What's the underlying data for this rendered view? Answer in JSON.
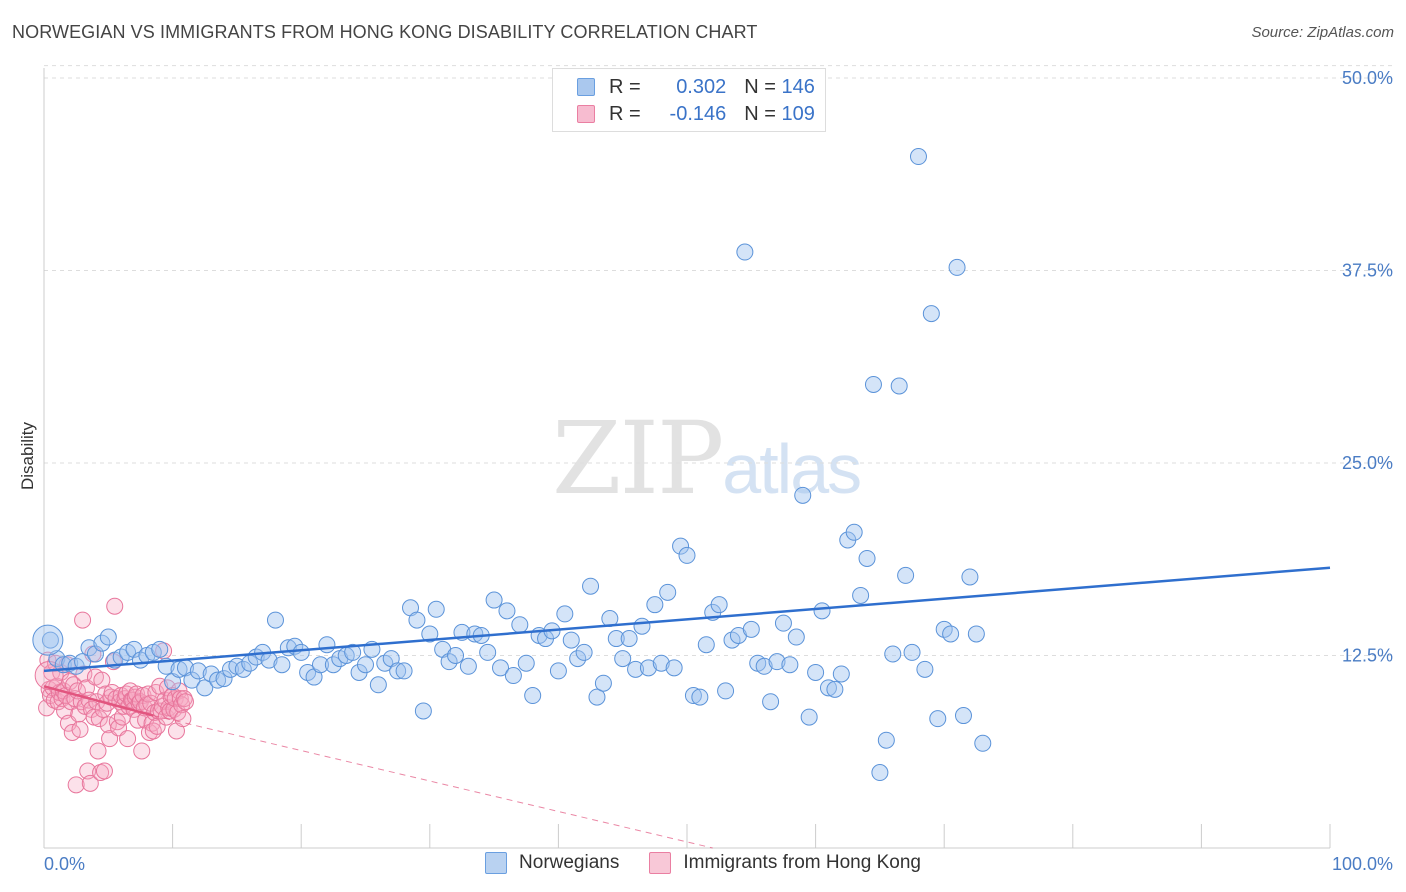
{
  "title": "NORWEGIAN VS IMMIGRANTS FROM HONG KONG DISABILITY CORRELATION CHART",
  "source": "Source: ZipAtlas.com",
  "watermark": {
    "zip": "ZIP",
    "atlas": "atlas"
  },
  "legend": {
    "r_label": "R =",
    "n_label": "N =",
    "rows": [
      {
        "r": "0.302",
        "n": "146",
        "fill": "#aac8ee",
        "stroke": "#6a9fe0"
      },
      {
        "r": "-0.146",
        "n": "109",
        "fill": "#f7bcd0",
        "stroke": "#ea7fa2"
      }
    ]
  },
  "bottom_legend": [
    {
      "label": "Norwegians",
      "fill": "#b9d2f1",
      "stroke": "#6a9fe0"
    },
    {
      "label": "Immigrants from Hong Kong",
      "fill": "#f8c8d7",
      "stroke": "#ea7fa2"
    }
  ],
  "colors": {
    "blue_fill": "rgba(160,196,240,0.45)",
    "blue_stroke": "#5b93d9",
    "blue_line": "#2f6fce",
    "pink_fill": "rgba(245,170,195,0.35)",
    "pink_stroke": "#e8769c",
    "pink_line": "#e2557f",
    "grid": "#dddddd",
    "tick_text": "#4a7cc4"
  },
  "chart_data": {
    "type": "scatter",
    "title": "NORWEGIAN VS IMMIGRANTS FROM HONG KONG DISABILITY CORRELATION CHART",
    "xlabel": "",
    "ylabel": "Disability",
    "xlim": [
      0,
      100
    ],
    "ylim": [
      0,
      50
    ],
    "x_tick_labels": [
      "0.0%",
      "100.0%"
    ],
    "y_ticks": [
      12.5,
      25.0,
      37.5,
      50.0
    ],
    "y_tick_labels": [
      "12.5%",
      "25.0%",
      "37.5%",
      "50.0%"
    ],
    "grid": "horizontal dashed",
    "legend_position": "top-center",
    "series": [
      {
        "name": "Norwegians",
        "r": 0.302,
        "n": 146,
        "trend": {
          "x": [
            0,
            100
          ],
          "y": [
            11.5,
            18.2
          ]
        },
        "points": [
          [
            0.5,
            13.5
          ],
          [
            1.0,
            12.3
          ],
          [
            1.5,
            11.9
          ],
          [
            2.0,
            12.0
          ],
          [
            2.5,
            11.8
          ],
          [
            3.0,
            12.1
          ],
          [
            3.5,
            13.0
          ],
          [
            4.0,
            12.6
          ],
          [
            4.5,
            13.3
          ],
          [
            5.0,
            13.7
          ],
          [
            5.5,
            12.2
          ],
          [
            6.0,
            12.4
          ],
          [
            6.5,
            12.7
          ],
          [
            7.0,
            12.9
          ],
          [
            7.5,
            12.2
          ],
          [
            8.0,
            12.5
          ],
          [
            8.5,
            12.7
          ],
          [
            9.0,
            12.9
          ],
          [
            9.5,
            11.8
          ],
          [
            10.0,
            10.8
          ],
          [
            10.5,
            11.6
          ],
          [
            11.0,
            11.7
          ],
          [
            11.5,
            10.9
          ],
          [
            12.0,
            11.5
          ],
          [
            12.5,
            10.4
          ],
          [
            13.0,
            11.3
          ],
          [
            13.5,
            10.9
          ],
          [
            14.0,
            11.0
          ],
          [
            14.5,
            11.6
          ],
          [
            15.0,
            11.8
          ],
          [
            15.5,
            11.6
          ],
          [
            16.0,
            12.0
          ],
          [
            16.5,
            12.4
          ],
          [
            17.0,
            12.7
          ],
          [
            17.5,
            12.2
          ],
          [
            18.0,
            14.8
          ],
          [
            18.5,
            11.9
          ],
          [
            19.0,
            13.0
          ],
          [
            19.5,
            13.1
          ],
          [
            20.0,
            12.7
          ],
          [
            20.5,
            11.4
          ],
          [
            21.0,
            11.1
          ],
          [
            21.5,
            11.9
          ],
          [
            22.0,
            13.2
          ],
          [
            22.5,
            11.9
          ],
          [
            23.0,
            12.3
          ],
          [
            23.5,
            12.5
          ],
          [
            24.0,
            12.7
          ],
          [
            24.5,
            11.4
          ],
          [
            25.0,
            11.9
          ],
          [
            25.5,
            12.9
          ],
          [
            26.0,
            10.6
          ],
          [
            26.5,
            12.0
          ],
          [
            27.0,
            12.3
          ],
          [
            27.5,
            11.5
          ],
          [
            28.0,
            11.5
          ],
          [
            28.5,
            15.6
          ],
          [
            29.0,
            14.8
          ],
          [
            29.5,
            8.9
          ],
          [
            30.0,
            13.9
          ],
          [
            30.5,
            15.5
          ],
          [
            31.0,
            12.9
          ],
          [
            31.5,
            12.1
          ],
          [
            32.0,
            12.5
          ],
          [
            32.5,
            14.0
          ],
          [
            33.0,
            11.8
          ],
          [
            33.5,
            13.9
          ],
          [
            34.0,
            13.8
          ],
          [
            34.5,
            12.7
          ],
          [
            35.0,
            16.1
          ],
          [
            35.5,
            11.7
          ],
          [
            36.0,
            15.4
          ],
          [
            36.5,
            11.2
          ],
          [
            37.0,
            14.5
          ],
          [
            37.5,
            12.0
          ],
          [
            38.0,
            9.9
          ],
          [
            38.5,
            13.8
          ],
          [
            39.0,
            13.6
          ],
          [
            39.5,
            14.1
          ],
          [
            40.0,
            11.5
          ],
          [
            40.5,
            15.2
          ],
          [
            41.0,
            13.5
          ],
          [
            41.5,
            12.3
          ],
          [
            42.0,
            12.7
          ],
          [
            42.5,
            17.0
          ],
          [
            43.0,
            9.8
          ],
          [
            43.5,
            10.7
          ],
          [
            44.0,
            14.9
          ],
          [
            44.5,
            13.6
          ],
          [
            45.0,
            12.3
          ],
          [
            45.5,
            13.6
          ],
          [
            46.0,
            11.6
          ],
          [
            46.5,
            14.4
          ],
          [
            47.0,
            11.7
          ],
          [
            47.5,
            15.8
          ],
          [
            48.0,
            12.0
          ],
          [
            48.5,
            16.6
          ],
          [
            49.0,
            11.7
          ],
          [
            49.5,
            19.6
          ],
          [
            50.0,
            19.0
          ],
          [
            50.5,
            9.9
          ],
          [
            51.0,
            9.8
          ],
          [
            51.5,
            13.2
          ],
          [
            52.0,
            15.3
          ],
          [
            52.5,
            15.8
          ],
          [
            53.0,
            10.2
          ],
          [
            53.5,
            13.5
          ],
          [
            54.0,
            13.8
          ],
          [
            54.5,
            38.7
          ],
          [
            55.0,
            14.2
          ],
          [
            55.5,
            12.0
          ],
          [
            56.0,
            11.8
          ],
          [
            56.5,
            9.5
          ],
          [
            57.0,
            12.1
          ],
          [
            57.5,
            14.6
          ],
          [
            58.0,
            11.9
          ],
          [
            58.5,
            13.7
          ],
          [
            59.0,
            22.9
          ],
          [
            59.5,
            8.5
          ],
          [
            60.0,
            11.4
          ],
          [
            60.5,
            15.4
          ],
          [
            61.0,
            10.4
          ],
          [
            61.5,
            10.3
          ],
          [
            62.0,
            11.3
          ],
          [
            62.5,
            20.0
          ],
          [
            63.0,
            20.5
          ],
          [
            63.5,
            16.4
          ],
          [
            64.0,
            18.8
          ],
          [
            64.5,
            30.1
          ],
          [
            65.0,
            4.9
          ],
          [
            65.5,
            7.0
          ],
          [
            66.0,
            12.6
          ],
          [
            66.5,
            30.0
          ],
          [
            67.0,
            17.7
          ],
          [
            67.5,
            12.7
          ],
          [
            68.0,
            44.9
          ],
          [
            68.5,
            11.6
          ],
          [
            69.0,
            34.7
          ],
          [
            69.5,
            8.4
          ],
          [
            70.0,
            14.2
          ],
          [
            70.5,
            13.9
          ],
          [
            71.0,
            37.7
          ],
          [
            71.5,
            8.6
          ],
          [
            72.0,
            17.6
          ],
          [
            72.5,
            13.9
          ],
          [
            73.0,
            6.8
          ]
        ]
      },
      {
        "name": "Immigrants from Hong Kong",
        "r": -0.146,
        "n": 109,
        "trend": {
          "x": [
            0,
            8.5
          ],
          "y": [
            10.5,
            8.6
          ]
        },
        "trend_dashed_extension": {
          "x": [
            8.5,
            52
          ],
          "y": [
            8.6,
            0
          ]
        },
        "points": [
          [
            0.2,
            9.1
          ],
          [
            0.3,
            12.2
          ],
          [
            0.4,
            10.3
          ],
          [
            0.5,
            9.9
          ],
          [
            0.6,
            11.4
          ],
          [
            0.7,
            10.4
          ],
          [
            0.8,
            9.6
          ],
          [
            0.9,
            12.0
          ],
          [
            1.0,
            10.5
          ],
          [
            1.1,
            9.5
          ],
          [
            1.2,
            10.1
          ],
          [
            1.3,
            11.4
          ],
          [
            1.4,
            9.7
          ],
          [
            1.5,
            10.2
          ],
          [
            1.6,
            8.9
          ],
          [
            1.7,
            9.9
          ],
          [
            1.8,
            11.9
          ],
          [
            1.9,
            8.1
          ],
          [
            2.0,
            10.8
          ],
          [
            2.1,
            9.5
          ],
          [
            2.2,
            7.5
          ],
          [
            2.3,
            10.6
          ],
          [
            2.4,
            9.7
          ],
          [
            2.5,
            4.1
          ],
          [
            2.6,
            10.2
          ],
          [
            2.7,
            8.7
          ],
          [
            2.8,
            7.7
          ],
          [
            2.9,
            9.5
          ],
          [
            3.0,
            14.8
          ],
          [
            3.1,
            11.3
          ],
          [
            3.2,
            9.2
          ],
          [
            3.3,
            10.4
          ],
          [
            3.4,
            5.0
          ],
          [
            3.5,
            9.6
          ],
          [
            3.6,
            4.2
          ],
          [
            3.7,
            9.0
          ],
          [
            3.8,
            12.6
          ],
          [
            3.9,
            8.5
          ],
          [
            4.0,
            11.1
          ],
          [
            4.1,
            9.5
          ],
          [
            4.2,
            6.3
          ],
          [
            4.3,
            8.4
          ],
          [
            4.4,
            4.9
          ],
          [
            4.5,
            10.9
          ],
          [
            4.6,
            9.0
          ],
          [
            4.7,
            5.0
          ],
          [
            4.8,
            10.0
          ],
          [
            4.9,
            9.4
          ],
          [
            5.0,
            8.0
          ],
          [
            5.1,
            7.1
          ],
          [
            5.2,
            9.8
          ],
          [
            5.3,
            10.1
          ],
          [
            5.4,
            12.1
          ],
          [
            5.5,
            15.7
          ],
          [
            5.6,
            9.7
          ],
          [
            5.7,
            8.2
          ],
          [
            5.8,
            7.8
          ],
          [
            5.9,
            9.5
          ],
          [
            6.0,
            9.9
          ],
          [
            6.1,
            8.5
          ],
          [
            6.2,
            9.2
          ],
          [
            6.3,
            9.7
          ],
          [
            6.4,
            10.0
          ],
          [
            6.5,
            7.1
          ],
          [
            6.6,
            9.2
          ],
          [
            6.7,
            10.2
          ],
          [
            6.8,
            9.6
          ],
          [
            6.9,
            9.6
          ],
          [
            7.0,
            9.0
          ],
          [
            7.1,
            9.8
          ],
          [
            7.2,
            10.0
          ],
          [
            7.3,
            8.3
          ],
          [
            7.4,
            9.4
          ],
          [
            7.5,
            9.5
          ],
          [
            7.6,
            6.3
          ],
          [
            7.7,
            9.9
          ],
          [
            7.8,
            9.1
          ],
          [
            7.9,
            8.3
          ],
          [
            8.0,
            9.3
          ],
          [
            8.1,
            10.0
          ],
          [
            8.2,
            7.5
          ],
          [
            8.3,
            9.4
          ],
          [
            8.4,
            8.1
          ],
          [
            8.5,
            7.6
          ],
          [
            8.6,
            8.8
          ],
          [
            8.7,
            10.1
          ],
          [
            8.8,
            7.9
          ],
          [
            8.9,
            8.9
          ],
          [
            9.0,
            10.5
          ],
          [
            9.1,
            8.9
          ],
          [
            9.2,
            9.2
          ],
          [
            9.3,
            12.8
          ],
          [
            9.4,
            9.6
          ],
          [
            9.5,
            8.5
          ],
          [
            9.6,
            10.4
          ],
          [
            9.7,
            9.1
          ],
          [
            9.8,
            8.9
          ],
          [
            9.9,
            9.8
          ],
          [
            10.0,
            9.9
          ],
          [
            10.1,
            9.0
          ],
          [
            10.2,
            9.7
          ],
          [
            10.3,
            7.6
          ],
          [
            10.4,
            8.8
          ],
          [
            10.5,
            10.2
          ],
          [
            10.6,
            9.7
          ],
          [
            10.7,
            9.3
          ],
          [
            10.8,
            8.4
          ],
          [
            10.9,
            9.7
          ],
          [
            11.0,
            9.5
          ]
        ]
      }
    ]
  },
  "ui": {
    "y_axis_title": "Disability"
  }
}
